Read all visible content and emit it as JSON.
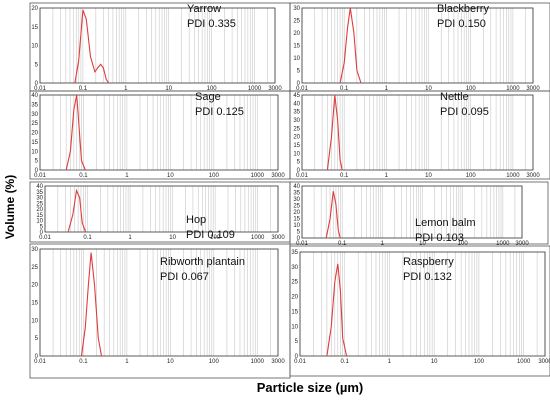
{
  "figure": {
    "ylabel": "Volume (%)",
    "xlabel": "Particle size (µm)"
  },
  "chart_data": [
    {
      "type": "line",
      "xscale": "log",
      "xlim": [
        0.01,
        3000
      ],
      "xticks": [
        "0.01",
        "0.1",
        "1",
        "10",
        "100",
        "1000",
        "3000"
      ],
      "ylim": [
        0,
        20
      ],
      "yticks": [
        "0",
        "5",
        "10",
        "15",
        "20"
      ],
      "name": "Yarrow",
      "pdi": "PDI 0.335",
      "series": [
        {
          "x": [
            0.065,
            0.08,
            0.1,
            0.12,
            0.15,
            0.19,
            0.22,
            0.26,
            0.3,
            0.35,
            0.4
          ],
          "y": [
            0,
            6,
            19.5,
            17,
            7,
            3,
            4,
            5,
            4,
            1,
            0
          ]
        }
      ]
    },
    {
      "type": "line",
      "xscale": "log",
      "xlim": [
        0.01,
        3000
      ],
      "xticks": [
        "0.01",
        "0.1",
        "1",
        "10",
        "100",
        "1000",
        "3000"
      ],
      "ylim": [
        0,
        30
      ],
      "yticks": [
        "0",
        "5",
        "10",
        "15",
        "20",
        "25",
        "30"
      ],
      "name": "Blackberry",
      "pdi": "PDI 0.150",
      "series": [
        {
          "x": [
            0.08,
            0.1,
            0.12,
            0.14,
            0.17,
            0.2,
            0.25
          ],
          "y": [
            0,
            8,
            22,
            30,
            20,
            5,
            0
          ]
        }
      ]
    },
    {
      "type": "line",
      "xscale": "log",
      "xlim": [
        0.01,
        3000
      ],
      "xticks": [
        "0.01",
        "0.1",
        "1",
        "10",
        "100",
        "1000",
        "3000"
      ],
      "ylim": [
        0,
        40
      ],
      "yticks": [
        "0",
        "5",
        "10",
        "15",
        "20",
        "25",
        "30",
        "35",
        "40"
      ],
      "name": "Sage",
      "pdi": "PDI 0.125",
      "series": [
        {
          "x": [
            0.04,
            0.05,
            0.06,
            0.07,
            0.08,
            0.09,
            0.11
          ],
          "y": [
            0,
            10,
            32,
            40,
            22,
            5,
            0
          ]
        }
      ]
    },
    {
      "type": "line",
      "xscale": "log",
      "xlim": [
        0.01,
        3000
      ],
      "xticks": [
        "0.01",
        "0.1",
        "1",
        "10",
        "100",
        "1000",
        "3000"
      ],
      "ylim": [
        0,
        45
      ],
      "yticks": [
        "0",
        "5",
        "10",
        "15",
        "20",
        "25",
        "30",
        "35",
        "40",
        "45"
      ],
      "name": "Nettle",
      "pdi": "PDI 0.095",
      "series": [
        {
          "x": [
            0.04,
            0.05,
            0.06,
            0.07,
            0.08,
            0.09
          ],
          "y": [
            0,
            20,
            45,
            30,
            6,
            0
          ]
        }
      ]
    },
    {
      "type": "line",
      "xscale": "log",
      "xlim": [
        0.01,
        3000
      ],
      "xticks": [
        "0.01",
        "0.1",
        "1",
        "10",
        "100",
        "1000",
        "3000"
      ],
      "ylim": [
        0,
        40
      ],
      "yticks": [
        "0",
        "5",
        "10",
        "15",
        "20",
        "25",
        "30",
        "35",
        "40"
      ],
      "name": "Hop",
      "pdi": "PDI 0.109",
      "series": [
        {
          "x": [
            0.035,
            0.045,
            0.055,
            0.065,
            0.075,
            0.09
          ],
          "y": [
            0,
            15,
            36,
            30,
            8,
            0
          ]
        }
      ]
    },
    {
      "type": "line",
      "xscale": "log",
      "xlim": [
        0.01,
        3000
      ],
      "xticks": [
        "0.01",
        "0.1",
        "1",
        "10",
        "100",
        "1000",
        "3000"
      ],
      "ylim": [
        0,
        40
      ],
      "yticks": [
        "0",
        "5",
        "10",
        "15",
        "20",
        "25",
        "30",
        "35",
        "40"
      ],
      "name": "Lemon balm",
      "pdi": "PDI 0.103",
      "series": [
        {
          "x": [
            0.04,
            0.05,
            0.06,
            0.07,
            0.08,
            0.09
          ],
          "y": [
            0,
            15,
            36,
            26,
            6,
            0
          ]
        }
      ]
    },
    {
      "type": "line",
      "xscale": "log",
      "xlim": [
        0.01,
        3000
      ],
      "xticks": [
        "0.01",
        "0.1",
        "1",
        "10",
        "100",
        "1000",
        "3000"
      ],
      "ylim": [
        0,
        30
      ],
      "yticks": [
        "0",
        "5",
        "10",
        "15",
        "20",
        "25",
        "30"
      ],
      "name": "Ribworth plantain",
      "pdi": "PDI 0.067",
      "series": [
        {
          "x": [
            0.09,
            0.11,
            0.13,
            0.15,
            0.18,
            0.22,
            0.26
          ],
          "y": [
            0,
            8,
            20,
            29,
            20,
            5,
            0
          ]
        }
      ]
    },
    {
      "type": "line",
      "xscale": "log",
      "xlim": [
        0.01,
        3000
      ],
      "xticks": [
        "0.01",
        "0.1",
        "1",
        "10",
        "100",
        "1000",
        "3000"
      ],
      "ylim": [
        0,
        35
      ],
      "yticks": [
        "0",
        "5",
        "10",
        "15",
        "20",
        "25",
        "30",
        "35"
      ],
      "name": "Raspberry",
      "pdi": "PDI 0.132",
      "series": [
        {
          "x": [
            0.04,
            0.05,
            0.06,
            0.07,
            0.08,
            0.09,
            0.11
          ],
          "y": [
            0,
            10,
            25,
            31,
            22,
            6,
            0
          ]
        }
      ]
    }
  ]
}
